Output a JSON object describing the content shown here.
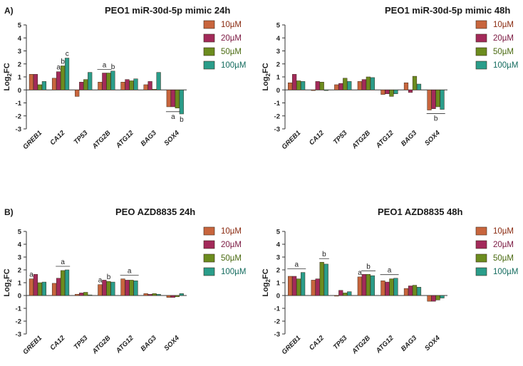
{
  "panel_labels": [
    "A)",
    "B)"
  ],
  "legend": [
    {
      "label": "10µM",
      "color": "#c8653d",
      "text_color": "#8a2a10"
    },
    {
      "label": "20µM",
      "color": "#a32a5a",
      "text_color": "#7a1740"
    },
    {
      "label": "50µM",
      "color": "#6c8c1e",
      "text_color": "#4a6a10"
    },
    {
      "label": "100µM",
      "color": "#2a9d8a",
      "text_color": "#136b5e"
    }
  ],
  "chart_data": [
    {
      "type": "bar",
      "title": "PEO1 miR-30d-5p mimic 24h",
      "ylabel": "Log2FC",
      "ylim": [
        -3,
        5
      ],
      "yticks": [
        -3,
        -2,
        -1,
        0,
        1,
        2,
        3,
        4,
        5
      ],
      "categories": [
        "GREB1",
        "CA12",
        "TP53",
        "ATG2B",
        "ATG12",
        "BAG3",
        "SOX4"
      ],
      "series": [
        {
          "name": "10µM",
          "values": [
            1.2,
            0.9,
            -0.5,
            0.6,
            0.6,
            0.4,
            -1.3
          ]
        },
        {
          "name": "20µM",
          "values": [
            1.2,
            1.4,
            0.6,
            1.3,
            0.8,
            0.65,
            -1.3
          ]
        },
        {
          "name": "50µM",
          "values": [
            0.4,
            1.85,
            0.8,
            1.3,
            0.7,
            0.05,
            -1.4
          ]
        },
        {
          "name": "100µM",
          "values": [
            0.65,
            2.45,
            1.35,
            1.45,
            0.85,
            1.35,
            -1.85
          ]
        }
      ],
      "annotations": [
        {
          "category": "CA12",
          "series": 1,
          "text": "a"
        },
        {
          "category": "CA12",
          "series": 2,
          "text": "b"
        },
        {
          "category": "CA12",
          "series": 3,
          "text": "c"
        },
        {
          "category": "ATG2B",
          "span": [
            0,
            2
          ],
          "text": "a",
          "bracket": true
        },
        {
          "category": "ATG2B",
          "series": 3,
          "text": "b"
        },
        {
          "category": "SOX4",
          "span": [
            0,
            2
          ],
          "text": "a",
          "bracket": true,
          "below": true
        },
        {
          "category": "SOX4",
          "series": 3,
          "text": "b",
          "below": true
        }
      ]
    },
    {
      "type": "bar",
      "title": "PEO1 miR-30d-5p mimic 48h",
      "ylabel": "Log2FC",
      "ylim": [
        -3,
        5
      ],
      "yticks": [
        -3,
        -2,
        -1,
        0,
        1,
        2,
        3,
        4,
        5
      ],
      "categories": [
        "GREB1",
        "CA12",
        "TP53",
        "ATG2B",
        "ATG12",
        "BAG3",
        "SOX4"
      ],
      "series": [
        {
          "name": "10µM",
          "values": [
            0.55,
            -0.05,
            0.4,
            0.65,
            -0.35,
            0.55,
            -1.55
          ]
        },
        {
          "name": "20µM",
          "values": [
            1.2,
            0.65,
            0.5,
            0.8,
            -0.3,
            -0.2,
            -1.45
          ]
        },
        {
          "name": "50µM",
          "values": [
            0.7,
            0.6,
            0.9,
            1.0,
            -0.5,
            1.05,
            -1.3
          ]
        },
        {
          "name": "100µM",
          "values": [
            0.65,
            -0.05,
            0.65,
            0.95,
            -0.3,
            0.45,
            -1.5
          ]
        }
      ],
      "annotations": [
        {
          "category": "SOX4",
          "span": [
            0,
            3
          ],
          "text": "b",
          "bracket": true,
          "below": true
        }
      ]
    },
    {
      "type": "bar",
      "title": "PEO AZD8835 24h",
      "ylabel": "Log2FC",
      "ylim": [
        -3,
        5
      ],
      "yticks": [
        -3,
        -2,
        -1,
        0,
        1,
        2,
        3,
        4,
        5
      ],
      "categories": [
        "GREB1",
        "CA12",
        "TP53",
        "ATG2B",
        "ATG12",
        "BAG3",
        "SOX4"
      ],
      "series": [
        {
          "name": "10µM",
          "values": [
            1.3,
            0.95,
            0.1,
            0.85,
            1.3,
            0.15,
            -0.15
          ]
        },
        {
          "name": "20µM",
          "values": [
            1.65,
            1.35,
            0.2,
            1.2,
            1.2,
            0.1,
            -0.15
          ]
        },
        {
          "name": "50µM",
          "values": [
            1.0,
            1.95,
            0.25,
            1.1,
            1.2,
            0.15,
            -0.1
          ]
        },
        {
          "name": "100µM",
          "values": [
            1.05,
            2.0,
            0.05,
            1.05,
            1.15,
            0.1,
            0.15
          ]
        }
      ],
      "annotations": [
        {
          "category": "GREB1",
          "series": 0,
          "text": "a"
        },
        {
          "category": "CA12",
          "span": [
            1,
            3
          ],
          "text": "a",
          "bracket": true
        },
        {
          "category": "ATG2B",
          "series": 0,
          "text": "a"
        },
        {
          "category": "ATG2B",
          "series": 2,
          "text": "b"
        },
        {
          "category": "ATG12",
          "span": [
            0,
            3
          ],
          "text": "a",
          "bracket": true
        }
      ]
    },
    {
      "type": "bar",
      "title": "PEO1 AZD8835 48h",
      "ylabel": "Log2FC",
      "ylim": [
        -3,
        5
      ],
      "yticks": [
        -3,
        -2,
        -1,
        0,
        1,
        2,
        3,
        4,
        5
      ],
      "categories": [
        "GREB1",
        "CA12",
        "TP53",
        "ATG2B",
        "ATG12",
        "BAG3",
        "SOX4"
      ],
      "series": [
        {
          "name": "10µM",
          "values": [
            1.5,
            1.2,
            -0.05,
            1.45,
            1.15,
            0.55,
            -0.45
          ]
        },
        {
          "name": "20µM",
          "values": [
            1.5,
            1.3,
            0.4,
            1.65,
            1.05,
            0.75,
            -0.45
          ]
        },
        {
          "name": "50µM",
          "values": [
            1.3,
            2.6,
            0.2,
            1.65,
            1.3,
            0.8,
            -0.35
          ]
        },
        {
          "name": "100µM",
          "values": [
            1.8,
            2.45,
            0.3,
            1.55,
            1.35,
            0.65,
            -0.2
          ]
        }
      ],
      "annotations": [
        {
          "category": "GREB1",
          "span": [
            0,
            3
          ],
          "text": "a",
          "bracket": true
        },
        {
          "category": "CA12",
          "span": [
            2,
            3
          ],
          "text": "b",
          "bracket": true
        },
        {
          "category": "ATG2B",
          "series": 0,
          "text": "a"
        },
        {
          "category": "ATG2B",
          "span": [
            1,
            3
          ],
          "text": "b",
          "bracket": true
        },
        {
          "category": "ATG12",
          "span": [
            0,
            3
          ],
          "text": "a",
          "bracket": true
        }
      ]
    }
  ]
}
